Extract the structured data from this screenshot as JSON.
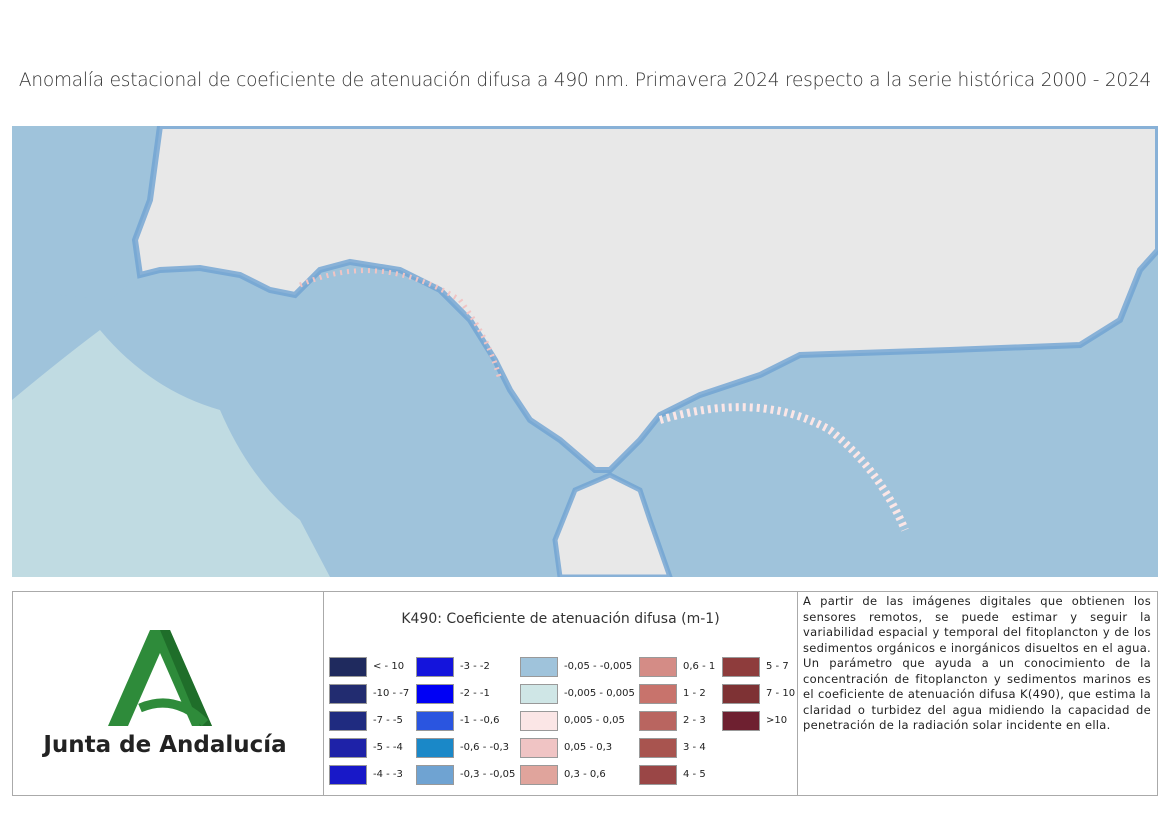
{
  "title": "Anomalía estacional de coeficiente de atenuación difusa a 490 nm. Primavera 2024 respecto a la serie histórica 2000 - 2024",
  "logo": {
    "text": "Junta de Andalucía"
  },
  "legend": {
    "title": "K490: Coeficiente de atenuación difusa (m-1)",
    "items": [
      {
        "label": "< - 10",
        "color": "#1f2a5e"
      },
      {
        "label": "-10 - -7",
        "color": "#222c70"
      },
      {
        "label": "-7 - -5",
        "color": "#1f2b80"
      },
      {
        "label": "-5 - -4",
        "color": "#1e22a8"
      },
      {
        "label": "-4 - -3",
        "color": "#1818c8"
      },
      {
        "label": "-3 - -2",
        "color": "#1414dc"
      },
      {
        "label": "-2 - -1",
        "color": "#0000f5"
      },
      {
        "label": "-1 - -0,6",
        "color": "#2a55e0"
      },
      {
        "label": "-0,6 - -0,3",
        "color": "#1a88c8"
      },
      {
        "label": "-0,3 - -0,05",
        "color": "#6fa3d2"
      },
      {
        "label": "-0,05 - -0,005",
        "color": "#9fc3db"
      },
      {
        "label": "-0,005 - 0,005",
        "color": "#cfe6e6"
      },
      {
        "label": "0,005 - 0,05",
        "color": "#fbe6e6"
      },
      {
        "label": "0,05 - 0,3",
        "color": "#f0c4c4"
      },
      {
        "label": "0,3 - 0,6",
        "color": "#e0a49c"
      },
      {
        "label": "0,6 - 1",
        "color": "#d48c86"
      },
      {
        "label": "1 - 2",
        "color": "#c8736c"
      },
      {
        "label": "2 - 3",
        "color": "#b96560"
      },
      {
        "label": "3 - 4",
        "color": "#a8544f"
      },
      {
        "label": "4 - 5",
        "color": "#9a4646"
      },
      {
        "label": "5 - 7",
        "color": "#8e3c3c"
      },
      {
        "label": "7 - 10",
        "color": "#7e3234"
      },
      {
        "label": ">10",
        "color": "#6e2030"
      }
    ]
  },
  "description": "A partir de las imágenes digitales que obtienen los sensores remotos, se puede estimar y seguir la variabilidad espacial y temporal del fitoplancton y de los sedimentos orgánicos e inorgánicos disueltos en el agua. Un parámetro que ayuda a un conocimiento de la concentración de fitoplancton y sedimentos marinos es el coeficiente de atenuación difusa K(490), que estima la claridad o turbidez del agua midiendo la capacidad de penetración de la radiación solar incidente en ella."
}
